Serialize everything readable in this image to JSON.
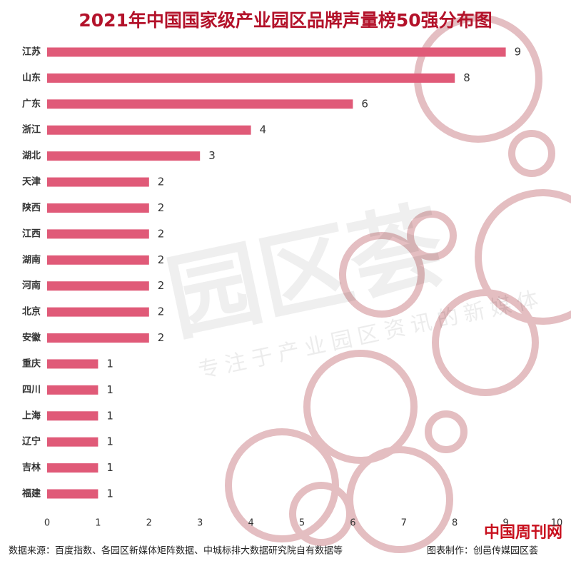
{
  "chart_data": {
    "type": "bar",
    "orientation": "horizontal",
    "title": "2021年中国国家级产业园区品牌声量榜50强分布图",
    "categories": [
      "江苏",
      "山东",
      "广东",
      "浙江",
      "湖北",
      "天津",
      "陕西",
      "江西",
      "湖南",
      "河南",
      "北京",
      "安徽",
      "重庆",
      "四川",
      "上海",
      "辽宁",
      "吉林",
      "福建"
    ],
    "values": [
      9,
      8,
      6,
      4,
      3,
      2,
      2,
      2,
      2,
      2,
      2,
      2,
      1,
      1,
      1,
      1,
      1,
      1
    ],
    "color": "#e05a78",
    "xlim": [
      0,
      10
    ],
    "xticks": [
      0,
      1,
      2,
      3,
      4,
      5,
      6,
      7,
      8,
      9,
      10
    ],
    "source": "数据来源：百度指数、各园区新媒体矩阵数据、中城标排大数据研究院自有数据等",
    "credit": "图表制作：创邑传媒园区荟",
    "watermark_logo": "园区荟",
    "watermark_slogan": "专注于产业园区资讯的新媒体",
    "site_mark": "中国周刊网"
  }
}
